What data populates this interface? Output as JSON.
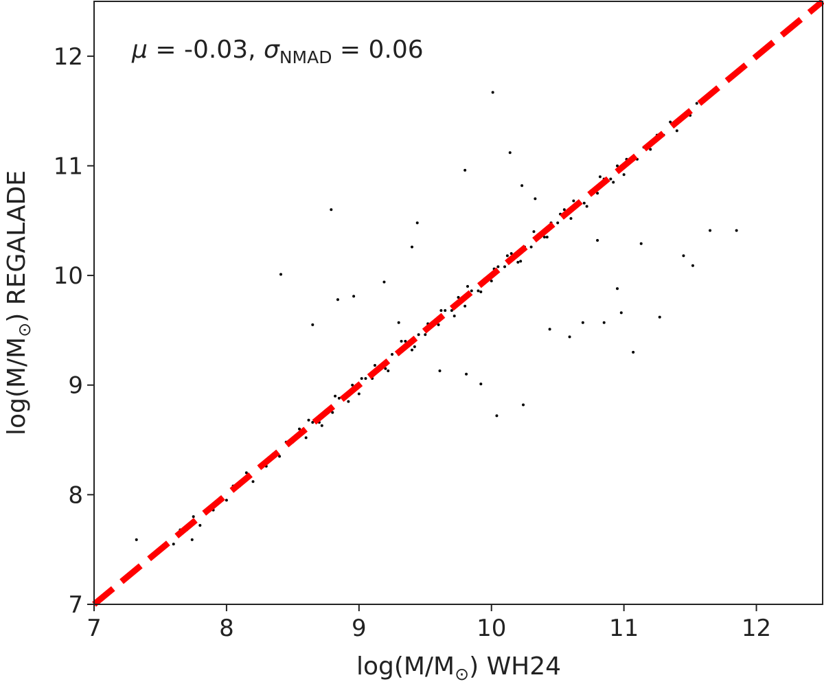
{
  "chart_data": {
    "type": "scatter",
    "annotation": {
      "mu_symbol": "μ",
      "mu_text": " = -0.03, ",
      "sigma_symbol": "σ",
      "sigma_sub": "NMAD",
      "sigma_text": " = 0.06"
    },
    "xlabel": {
      "text": "log(M/M",
      "sub": "⊙",
      "suffix": ") WH24"
    },
    "ylabel": {
      "text": "log(M/M",
      "sub": "⊙",
      "suffix": ") REGALADE"
    },
    "xlim": [
      7,
      12.5
    ],
    "ylim": [
      7,
      12.5
    ],
    "xticks": [
      7,
      8,
      9,
      10,
      11,
      12
    ],
    "yticks": [
      7,
      8,
      9,
      10,
      11,
      12
    ],
    "grid": false,
    "reference_line": {
      "color": "#ff0000",
      "style": "dashed"
    },
    "series": [
      {
        "color": "#000000",
        "x": [
          7.6,
          7.65,
          7.7,
          7.75,
          7.8,
          7.85,
          7.9,
          7.95,
          8.0,
          8.05,
          8.1,
          8.15,
          8.2,
          8.25,
          8.3,
          8.35,
          8.4,
          8.45,
          8.5,
          8.55,
          8.6,
          8.65,
          8.7,
          8.75,
          8.8,
          8.85,
          8.9,
          8.95,
          9.0,
          9.05,
          9.1,
          9.15,
          9.2,
          9.25,
          9.3,
          9.35,
          9.4,
          9.45,
          9.5,
          9.55,
          9.6,
          9.65,
          9.7,
          9.75,
          9.8,
          9.85,
          9.9,
          9.95,
          10.0,
          10.05,
          10.1,
          10.15,
          10.2,
          10.25,
          10.3,
          10.35,
          10.4,
          10.45,
          10.5,
          10.55,
          10.6,
          10.65,
          10.7,
          10.75,
          10.8,
          10.85,
          10.9,
          10.95,
          11.0,
          11.05,
          11.1,
          11.15,
          11.2,
          11.25,
          11.3,
          11.35,
          11.4,
          11.45,
          11.5,
          11.55,
          8.62,
          8.72,
          8.82,
          8.92,
          9.02,
          9.12,
          9.22,
          9.32,
          9.42,
          9.52,
          9.62,
          9.72,
          9.82,
          9.92,
          10.02,
          10.12,
          10.22,
          10.32,
          10.42,
          10.52,
          10.62,
          10.72,
          10.82,
          10.92,
          11.02,
          10.01,
          8.41,
          8.79,
          9.8,
          10.14,
          11.85,
          11.65,
          11.52,
          11.45,
          11.07,
          11.27,
          10.04,
          10.24,
          8.65,
          8.84,
          8.96,
          9.44,
          7.74,
          7.32,
          9.61,
          9.81,
          9.92,
          10.44,
          10.59,
          10.69,
          10.85,
          10.95,
          10.8,
          11.13,
          10.23,
          10.33,
          9.4,
          9.19,
          9.3,
          10.98
        ],
        "values": [
          7.55,
          7.68,
          7.68,
          7.8,
          7.72,
          7.86,
          7.86,
          7.97,
          7.95,
          8.08,
          8.08,
          8.2,
          8.12,
          8.26,
          8.26,
          8.37,
          8.35,
          8.48,
          8.48,
          8.6,
          8.52,
          8.66,
          8.66,
          8.77,
          8.75,
          8.88,
          8.88,
          9.0,
          8.92,
          9.06,
          9.06,
          9.17,
          9.15,
          9.28,
          9.28,
          9.4,
          9.32,
          9.46,
          9.46,
          9.57,
          9.55,
          9.68,
          9.68,
          9.8,
          9.72,
          9.86,
          9.86,
          9.97,
          9.95,
          10.08,
          10.08,
          10.2,
          10.12,
          10.26,
          10.26,
          10.37,
          10.35,
          10.48,
          10.48,
          10.6,
          10.52,
          10.66,
          10.66,
          10.77,
          10.75,
          10.88,
          10.88,
          11.0,
          10.92,
          11.06,
          11.06,
          11.17,
          11.15,
          11.28,
          11.28,
          11.4,
          11.32,
          11.46,
          11.46,
          11.57,
          8.68,
          8.63,
          8.9,
          8.85,
          9.06,
          9.18,
          9.13,
          9.4,
          9.35,
          9.56,
          9.68,
          9.63,
          9.9,
          9.85,
          10.06,
          10.18,
          10.13,
          10.4,
          10.35,
          10.56,
          10.68,
          10.63,
          10.9,
          10.85,
          11.06,
          11.67,
          10.01,
          10.6,
          10.96,
          11.12,
          10.41,
          10.41,
          10.09,
          10.18,
          9.3,
          9.62,
          8.72,
          8.82,
          9.55,
          9.78,
          9.81,
          10.48,
          7.59,
          7.59,
          9.13,
          9.1,
          9.01,
          9.51,
          9.44,
          9.57,
          9.57,
          9.88,
          10.32,
          10.29,
          10.82,
          10.7,
          10.26,
          9.94,
          9.57,
          9.66
        ]
      }
    ]
  }
}
